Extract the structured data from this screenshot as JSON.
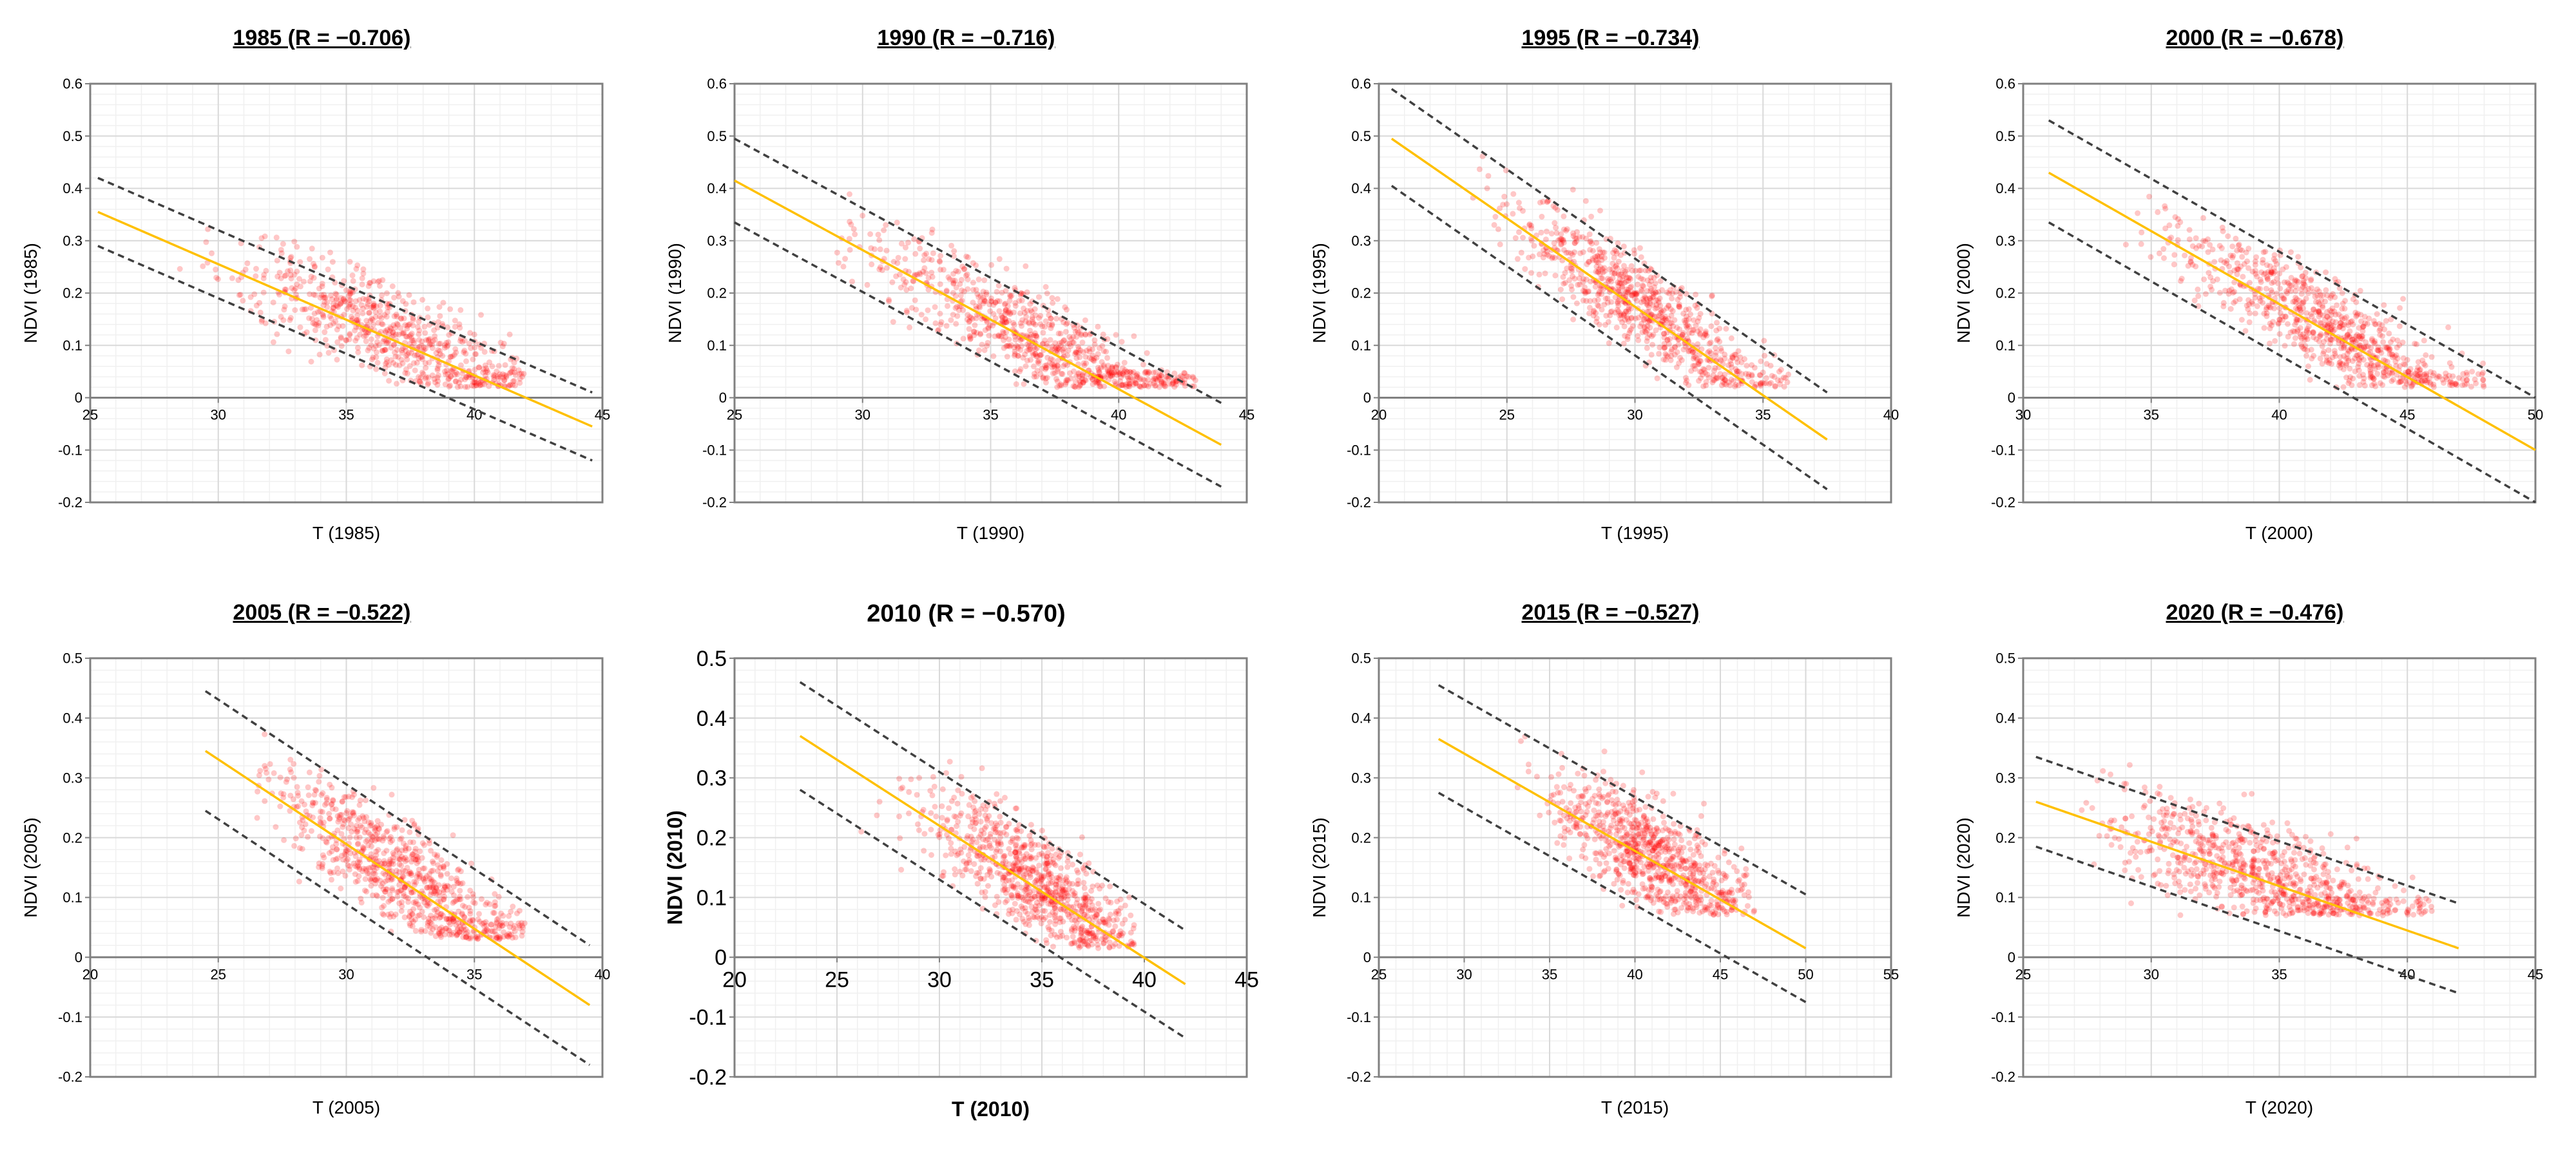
{
  "chart_data": [
    {
      "type": "scatter",
      "title": "1985 (R = −0.706)",
      "xlabel": "T (1985)",
      "ylabel": "NDVI (1985)",
      "xlim": [
        25,
        45
      ],
      "xstep": 5,
      "ylim": [
        -0.2,
        0.6
      ],
      "ystep": 0.1,
      "grid": true,
      "fit_line": [
        [
          25.3,
          0.355
        ],
        [
          44.6,
          -0.055
        ]
      ],
      "upper_bound": [
        [
          25.3,
          0.42
        ],
        [
          44.6,
          0.01
        ]
      ],
      "lower_bound": [
        [
          25.3,
          0.29
        ],
        [
          44.6,
          -0.12
        ]
      ],
      "cloud": {
        "x_center": 37,
        "x_sd": 3,
        "x_range": [
          28,
          42
        ],
        "y_floor": 0.02,
        "n": 700
      }
    },
    {
      "type": "scatter",
      "title": "1990 (R = −0.716)",
      "xlabel": "T (1990)",
      "ylabel": "NDVI (1990)",
      "xlim": [
        25,
        45
      ],
      "xstep": 5,
      "ylim": [
        -0.2,
        0.6
      ],
      "ystep": 0.1,
      "grid": true,
      "fit_line": [
        [
          25,
          0.415
        ],
        [
          44,
          -0.09
        ]
      ],
      "upper_bound": [
        [
          25,
          0.495
        ],
        [
          44,
          -0.01
        ]
      ],
      "lower_bound": [
        [
          25,
          0.335
        ],
        [
          44,
          -0.17
        ]
      ],
      "cloud": {
        "x_center": 37,
        "x_sd": 3.3,
        "x_range": [
          28,
          43
        ],
        "y_floor": 0.02,
        "n": 800
      }
    },
    {
      "type": "scatter",
      "title": "1995 (R = −0.734)",
      "xlabel": "T (1995)",
      "ylabel": "NDVI (1995)",
      "xlim": [
        20,
        40
      ],
      "xstep": 5,
      "ylim": [
        -0.2,
        0.6
      ],
      "ystep": 0.1,
      "grid": true,
      "fit_line": [
        [
          20.5,
          0.495
        ],
        [
          37.5,
          -0.08
        ]
      ],
      "upper_bound": [
        [
          20.5,
          0.59
        ],
        [
          37.5,
          0.01
        ]
      ],
      "lower_bound": [
        [
          20.5,
          0.405
        ],
        [
          37.5,
          -0.175
        ]
      ],
      "cloud": {
        "x_center": 30.5,
        "x_sd": 2.6,
        "x_range": [
          23.5,
          36
        ],
        "y_floor": 0.02,
        "n": 800
      }
    },
    {
      "type": "scatter",
      "title": "2000 (R = −0.678)",
      "xlabel": "T (2000)",
      "ylabel": "NDVI (2000)",
      "xlim": [
        30,
        50
      ],
      "xstep": 5,
      "ylim": [
        -0.2,
        0.6
      ],
      "ystep": 0.1,
      "grid": true,
      "fit_line": [
        [
          31,
          0.43
        ],
        [
          50,
          -0.1
        ]
      ],
      "upper_bound": [
        [
          31,
          0.53
        ],
        [
          50,
          0
        ]
      ],
      "lower_bound": [
        [
          31,
          0.335
        ],
        [
          50,
          -0.2
        ]
      ],
      "cloud": {
        "x_center": 42,
        "x_sd": 2.8,
        "x_range": [
          34,
          48
        ],
        "y_floor": 0.02,
        "n": 800
      }
    },
    {
      "type": "scatter",
      "title": "2005 (R = −0.522)",
      "xlabel": "T (2005)",
      "ylabel": "NDVI (2005)",
      "xlim": [
        20,
        40
      ],
      "xstep": 5,
      "ylim": [
        -0.2,
        0.5
      ],
      "ystep": 0.1,
      "grid": true,
      "fit_line": [
        [
          24.5,
          0.345
        ],
        [
          39.5,
          -0.08
        ]
      ],
      "upper_bound": [
        [
          24.5,
          0.445
        ],
        [
          39.5,
          0.02
        ]
      ],
      "lower_bound": [
        [
          24.5,
          0.245
        ],
        [
          39.5,
          -0.18
        ]
      ],
      "cloud": {
        "x_center": 32.5,
        "x_sd": 2.5,
        "x_range": [
          26.5,
          37
        ],
        "y_floor": 0.03,
        "n": 800
      }
    },
    {
      "type": "scatter",
      "title": "2010 (R = −0.570)",
      "xlabel": "T (2010)",
      "ylabel": "NDVI (2010)",
      "xlim": [
        20,
        45
      ],
      "xstep": 5,
      "ylim": [
        -0.2,
        0.5
      ],
      "ystep": 0.1,
      "grid": true,
      "fit_line": [
        [
          23.2,
          0.37
        ],
        [
          42,
          -0.045
        ]
      ],
      "upper_bound": [
        [
          23.2,
          0.46
        ],
        [
          42,
          0.045
        ]
      ],
      "lower_bound": [
        [
          23.2,
          0.28
        ],
        [
          42,
          -0.135
        ]
      ],
      "cloud": {
        "x_center": 35,
        "x_sd": 2.6,
        "x_range": [
          26,
          39.5
        ],
        "y_floor": 0.015,
        "n": 800
      }
    },
    {
      "type": "scatter",
      "title": "2015 (R = −0.527)",
      "xlabel": "T (2015)",
      "ylabel": "NDVI (2015)",
      "xlim": [
        25,
        55
      ],
      "xstep": 5,
      "ylim": [
        -0.2,
        0.5
      ],
      "ystep": 0.1,
      "grid": true,
      "fit_line": [
        [
          28.5,
          0.365
        ],
        [
          50,
          0.015
        ]
      ],
      "upper_bound": [
        [
          28.5,
          0.455
        ],
        [
          50,
          0.105
        ]
      ],
      "lower_bound": [
        [
          28.5,
          0.275
        ],
        [
          50,
          -0.075
        ]
      ],
      "cloud": {
        "x_center": 41,
        "x_sd": 3,
        "x_range": [
          33,
          47
        ],
        "y_floor": 0.07,
        "n": 800
      }
    },
    {
      "type": "scatter",
      "title": "2020 (R = −0.476)",
      "xlabel": "T (2020)",
      "ylabel": "NDVI (2020)",
      "xlim": [
        25,
        45
      ],
      "xstep": 5,
      "ylim": [
        -0.2,
        0.5
      ],
      "ystep": 0.1,
      "grid": true,
      "fit_line": [
        [
          25.5,
          0.26
        ],
        [
          42,
          0.015
        ]
      ],
      "upper_bound": [
        [
          25.5,
          0.335
        ],
        [
          42,
          0.09
        ]
      ],
      "lower_bound": [
        [
          25.5,
          0.185
        ],
        [
          42,
          -0.06
        ]
      ],
      "cloud": {
        "x_center": 34.5,
        "x_sd": 3,
        "x_range": [
          27,
          41
        ],
        "y_floor": 0.07,
        "n": 800
      }
    }
  ],
  "colors": {
    "points": "#ff0000",
    "fit_line": "#ffc000",
    "bounds": "#404040",
    "grid_major": "#d9d9d9",
    "grid_minor": "#f0f0f0",
    "axis": "#808080"
  }
}
